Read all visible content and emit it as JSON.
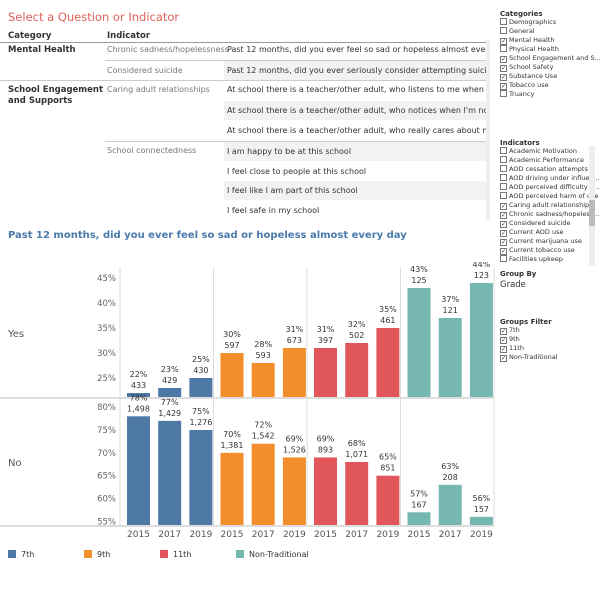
{
  "title": "Select a Question or Indicator",
  "table": {
    "col_category": "Category",
    "col_indicator": "Indicator",
    "rows": [
      {
        "category": "Mental Health",
        "indicator": "Chronic sadness/hopelessness",
        "question": "Past 12 months, did you ever feel so sad or hopeless almost every d..."
      },
      {
        "category": "",
        "indicator": "Considered suicide",
        "question": "Past 12 months, did you ever seriously consider attempting suicide?"
      },
      {
        "category": "School Engagement and Supports",
        "indicator": "Caring adult relationships",
        "question": "At school there is a teacher/other adult, who listens to me when I h..."
      },
      {
        "category": "",
        "indicator": "",
        "question": "At school there is a teacher/other adult, who notices when I'm not t..."
      },
      {
        "category": "",
        "indicator": "",
        "question": "At school there is a teacher/other adult, who really cares about me"
      },
      {
        "category": "",
        "indicator": "School connectedness",
        "question": "I am happy to be at this school"
      },
      {
        "category": "",
        "indicator": "",
        "question": "I feel close to people at this school"
      },
      {
        "category": "",
        "indicator": "",
        "question": "I feel like I am part of this school"
      },
      {
        "category": "",
        "indicator": "",
        "question": "I feel safe in my school"
      }
    ]
  },
  "chart_title": "Past 12 months, did you ever feel so sad or hopeless almost every day",
  "sidebar": {
    "categories_title": "Categories",
    "categories": [
      {
        "label": "Demographics",
        "checked": false
      },
      {
        "label": "General",
        "checked": false
      },
      {
        "label": "Mental Health",
        "checked": true
      },
      {
        "label": "Physical Health",
        "checked": false
      },
      {
        "label": "School Engagement and S...",
        "checked": true
      },
      {
        "label": "School Safety",
        "checked": true
      },
      {
        "label": "Substance Use",
        "checked": true
      },
      {
        "label": "Tobacco use",
        "checked": true
      },
      {
        "label": "Truancy",
        "checked": false
      }
    ],
    "indicators_title": "Indicators",
    "indicators": [
      {
        "label": "Academic Motivation",
        "checked": false
      },
      {
        "label": "Academic Performance",
        "checked": false
      },
      {
        "label": "AOD cessation attempts",
        "checked": false
      },
      {
        "label": "AOD driving under influen...",
        "checked": false
      },
      {
        "label": "AOD perceived difficulty o...",
        "checked": false
      },
      {
        "label": "AOD perceived harm of use",
        "checked": false
      },
      {
        "label": "Caring adult relationships",
        "checked": true
      },
      {
        "label": "Chronic sadness/hopeless...",
        "checked": true
      },
      {
        "label": "Considered suicide",
        "checked": true
      },
      {
        "label": "Current AOD use",
        "checked": true
      },
      {
        "label": "Current marijuana use",
        "checked": true
      },
      {
        "label": "Current tobacco use",
        "checked": true
      },
      {
        "label": "Facilities upkeep",
        "checked": false
      }
    ],
    "group_by_title": "Group By",
    "group_by_value": "Grade",
    "groups_filter_title": "Groups Filter",
    "groups_filter": [
      {
        "label": "7th",
        "checked": true
      },
      {
        "label": "9th",
        "checked": true
      },
      {
        "label": "11th",
        "checked": true
      },
      {
        "label": "Non-Traditional",
        "checked": true
      }
    ]
  },
  "legend": [
    {
      "label": "7th",
      "color": "#4e79a7"
    },
    {
      "label": "9th",
      "color": "#f28e2b"
    },
    {
      "label": "11th",
      "color": "#e15759"
    },
    {
      "label": "Non-Traditional",
      "color": "#76b7b2"
    }
  ],
  "chart_data": {
    "type": "bar",
    "years": [
      "2015",
      "2017",
      "2019"
    ],
    "groups": [
      "7th",
      "9th",
      "11th",
      "Non-Traditional"
    ],
    "colors": [
      "#4e79a7",
      "#f28e2b",
      "#e15759",
      "#76b7b2"
    ],
    "panels": [
      {
        "name": "Yes",
        "ylim": [
          21,
          47
        ],
        "ticks": [
          25,
          30,
          35,
          40,
          45
        ],
        "values": [
          [
            22,
            23,
            25
          ],
          [
            30,
            28,
            31
          ],
          [
            31,
            32,
            35
          ],
          [
            43,
            37,
            44
          ]
        ],
        "counts": [
          [
            "433",
            "429",
            "430"
          ],
          [
            "597",
            "593",
            "673"
          ],
          [
            "397",
            "502",
            "461"
          ],
          [
            "125",
            "121",
            "123"
          ]
        ]
      },
      {
        "name": "No",
        "ylim": [
          54,
          82
        ],
        "ticks": [
          55,
          60,
          65,
          70,
          75,
          80
        ],
        "values": [
          [
            78,
            77,
            75
          ],
          [
            70,
            72,
            69
          ],
          [
            69,
            68,
            65
          ],
          [
            57,
            63,
            56
          ]
        ],
        "counts": [
          [
            "1,498",
            "1,429",
            "1,276"
          ],
          [
            "1,381",
            "1,542",
            "1,526"
          ],
          [
            "893",
            "1,071",
            "851"
          ],
          [
            "167",
            "208",
            "157"
          ]
        ]
      }
    ]
  }
}
